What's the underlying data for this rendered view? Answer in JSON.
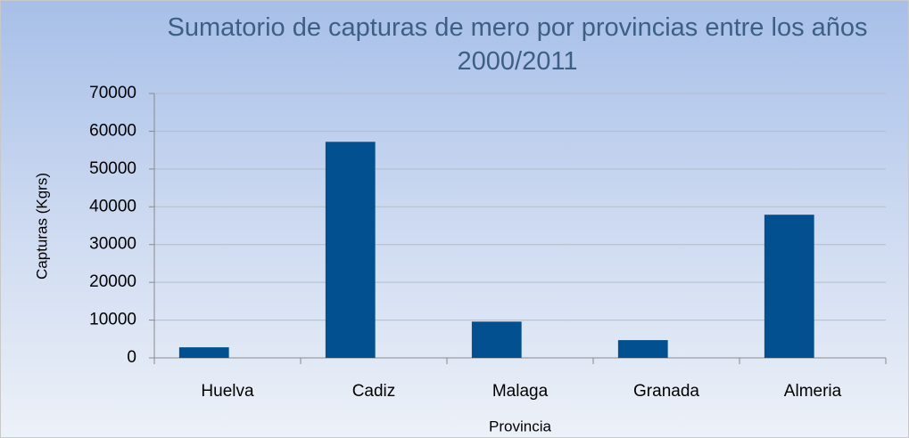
{
  "chart_data": {
    "type": "bar",
    "title": "Sumatorio de capturas de mero por provincias entre los años 2000/2011",
    "x_label": "Provincia",
    "y_label": "Capturas (Kgrs)",
    "categories": [
      "Huelva",
      "Cadiz",
      "Malaga",
      "Granada",
      "Almeria"
    ],
    "values": [
      2800,
      57200,
      9600,
      4700,
      37900
    ],
    "color": "#02508f",
    "ylim": [
      0,
      70000
    ],
    "yticks": [
      0,
      10000,
      20000,
      30000,
      40000,
      50000,
      60000,
      70000
    ],
    "grid": true
  }
}
